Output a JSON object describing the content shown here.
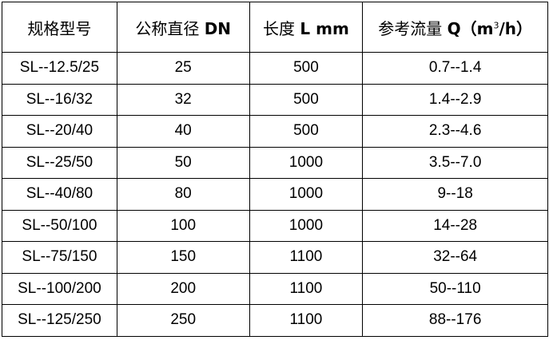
{
  "table": {
    "headers": {
      "model": "规格型号",
      "dn_label": "公称直径",
      "dn_unit": "DN",
      "length_label": "长度",
      "length_unit": "L mm",
      "flow_label": "参考流量",
      "flow_unit_open": "Q（m",
      "flow_unit_sup": "3",
      "flow_unit_close": "/h）"
    },
    "rows": [
      {
        "model": "SL--12.5/25",
        "dn": "25",
        "length": "500",
        "flow": "0.7--1.4"
      },
      {
        "model": "SL--16/32",
        "dn": "32",
        "length": "500",
        "flow": "1.4--2.9"
      },
      {
        "model": "SL--20/40",
        "dn": "40",
        "length": "500",
        "flow": "2.3--4.6"
      },
      {
        "model": "SL--25/50",
        "dn": "50",
        "length": "1000",
        "flow": "3.5--7.0"
      },
      {
        "model": "SL--40/80",
        "dn": "80",
        "length": "1000",
        "flow": "9--18"
      },
      {
        "model": "SL--50/100",
        "dn": "100",
        "length": "1000",
        "flow": "14--28"
      },
      {
        "model": "SL--75/150",
        "dn": "150",
        "length": "1100",
        "flow": "32--64"
      },
      {
        "model": "SL--100/200",
        "dn": "200",
        "length": "1100",
        "flow": "50--110"
      },
      {
        "model": "SL--125/250",
        "dn": "250",
        "length": "1100",
        "flow": "88--176"
      }
    ]
  }
}
